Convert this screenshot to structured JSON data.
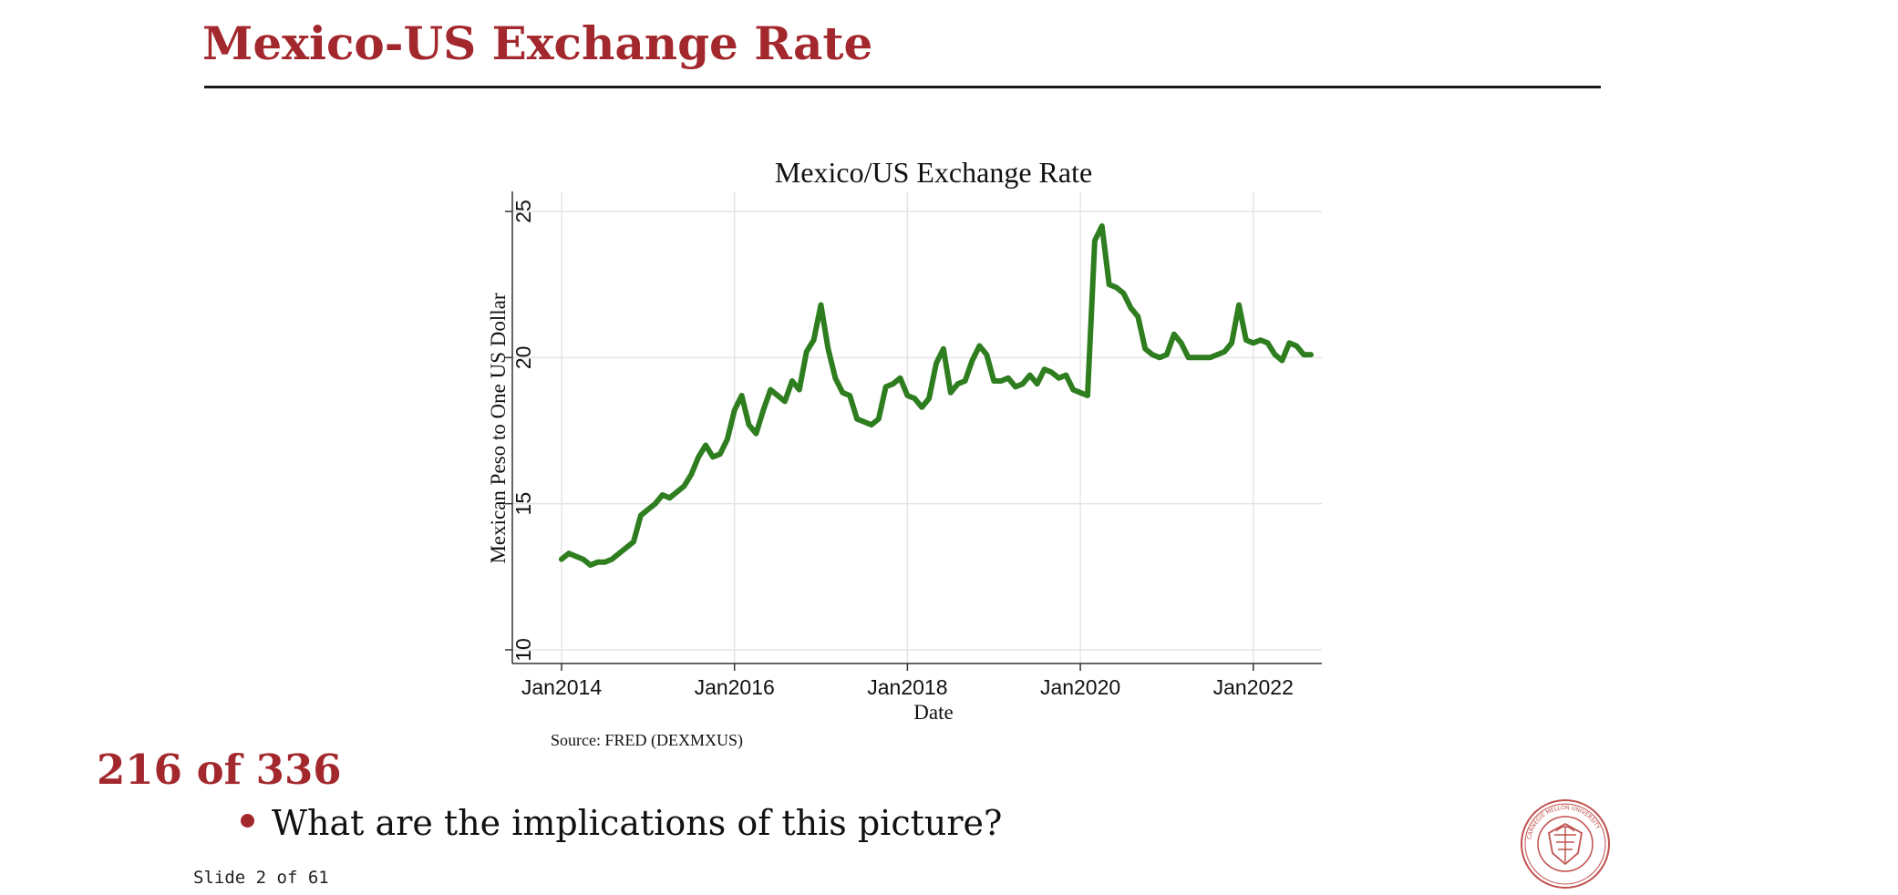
{
  "slide": {
    "title": "Mexico-US Exchange Rate",
    "counter": "216 of 336",
    "bullet": "What are the implications of this picture?",
    "slide_number": "Slide 2 of 61"
  },
  "colors": {
    "title": "#a3282d",
    "series": "#2e7d1f",
    "grid": "#e5e5e5"
  },
  "seal": {
    "icon": "university-seal-icon",
    "ring_text": "CARNEGIE MELLON UNIVERSITY"
  },
  "chart_data": {
    "type": "line",
    "title": "Mexico/US Exchange Rate",
    "xlabel": "Date",
    "ylabel": "Mexican Peso to One US Dollar",
    "source": "Source: FRED (DEXMXUS)",
    "xlim": [
      "2014-01-01",
      "2022-09-01"
    ],
    "ylim": [
      10,
      25
    ],
    "x_ticks": [
      "Jan2014",
      "Jan2016",
      "Jan2018",
      "Jan2020",
      "Jan2022"
    ],
    "y_ticks": [
      10,
      15,
      20,
      25
    ],
    "grid": true,
    "legend": "none",
    "series": [
      {
        "x": [
          "2014-01-01",
          "2014-02-01",
          "2014-03-01",
          "2014-04-01",
          "2014-05-01",
          "2014-06-01",
          "2014-07-01",
          "2014-08-01",
          "2014-09-01",
          "2014-10-01",
          "2014-11-01",
          "2014-12-01",
          "2015-01-01",
          "2015-02-01",
          "2015-03-01",
          "2015-04-01",
          "2015-05-01",
          "2015-06-01",
          "2015-07-01",
          "2015-08-01",
          "2015-09-01",
          "2015-10-01",
          "2015-11-01",
          "2015-12-01",
          "2016-01-01",
          "2016-02-01",
          "2016-03-01",
          "2016-04-01",
          "2016-05-01",
          "2016-06-01",
          "2016-07-01",
          "2016-08-01",
          "2016-09-01",
          "2016-10-01",
          "2016-11-01",
          "2016-12-01",
          "2017-01-01",
          "2017-02-01",
          "2017-03-01",
          "2017-04-01",
          "2017-05-01",
          "2017-06-01",
          "2017-07-01",
          "2017-08-01",
          "2017-09-01",
          "2017-10-01",
          "2017-11-01",
          "2017-12-01",
          "2018-01-01",
          "2018-02-01",
          "2018-03-01",
          "2018-04-01",
          "2018-05-01",
          "2018-06-01",
          "2018-07-01",
          "2018-08-01",
          "2018-09-01",
          "2018-10-01",
          "2018-11-01",
          "2018-12-01",
          "2019-01-01",
          "2019-02-01",
          "2019-03-01",
          "2019-04-01",
          "2019-05-01",
          "2019-06-01",
          "2019-07-01",
          "2019-08-01",
          "2019-09-01",
          "2019-10-01",
          "2019-11-01",
          "2019-12-01",
          "2020-01-01",
          "2020-02-01",
          "2020-03-01",
          "2020-04-01",
          "2020-05-01",
          "2020-06-01",
          "2020-07-01",
          "2020-08-01",
          "2020-09-01",
          "2020-10-01",
          "2020-11-01",
          "2020-12-01",
          "2021-01-01",
          "2021-02-01",
          "2021-03-01",
          "2021-04-01",
          "2021-05-01",
          "2021-06-01",
          "2021-07-01",
          "2021-08-01",
          "2021-09-01",
          "2021-10-01",
          "2021-11-01",
          "2021-12-01",
          "2022-01-01",
          "2022-02-01",
          "2022-03-01",
          "2022-04-01",
          "2022-05-01",
          "2022-06-01",
          "2022-07-01",
          "2022-08-01",
          "2022-09-01"
        ],
        "values": [
          13.1,
          13.3,
          13.2,
          13.1,
          12.9,
          13.0,
          13.0,
          13.1,
          13.3,
          13.5,
          13.7,
          14.6,
          14.8,
          15.0,
          15.3,
          15.2,
          15.4,
          15.6,
          16.0,
          16.6,
          17.0,
          16.6,
          16.7,
          17.2,
          18.2,
          18.7,
          17.7,
          17.4,
          18.2,
          18.9,
          18.7,
          18.5,
          19.2,
          18.9,
          20.2,
          20.6,
          21.8,
          20.3,
          19.3,
          18.8,
          18.7,
          17.9,
          17.8,
          17.7,
          17.9,
          19.0,
          19.1,
          19.3,
          18.7,
          18.6,
          18.3,
          18.6,
          19.8,
          20.3,
          18.8,
          19.1,
          19.2,
          19.9,
          20.4,
          20.1,
          19.2,
          19.2,
          19.3,
          19.0,
          19.1,
          19.4,
          19.1,
          19.6,
          19.5,
          19.3,
          19.4,
          18.9,
          18.8,
          18.7,
          24.0,
          24.5,
          22.5,
          22.4,
          22.2,
          21.7,
          21.4,
          20.3,
          20.1,
          20.0,
          20.1,
          20.8,
          20.5,
          20.0,
          20.0,
          20.0,
          20.0,
          20.1,
          20.2,
          20.5,
          21.8,
          20.6,
          20.5,
          20.6,
          20.5,
          20.1,
          19.9,
          20.5,
          20.4,
          20.1,
          20.1
        ]
      }
    ]
  }
}
